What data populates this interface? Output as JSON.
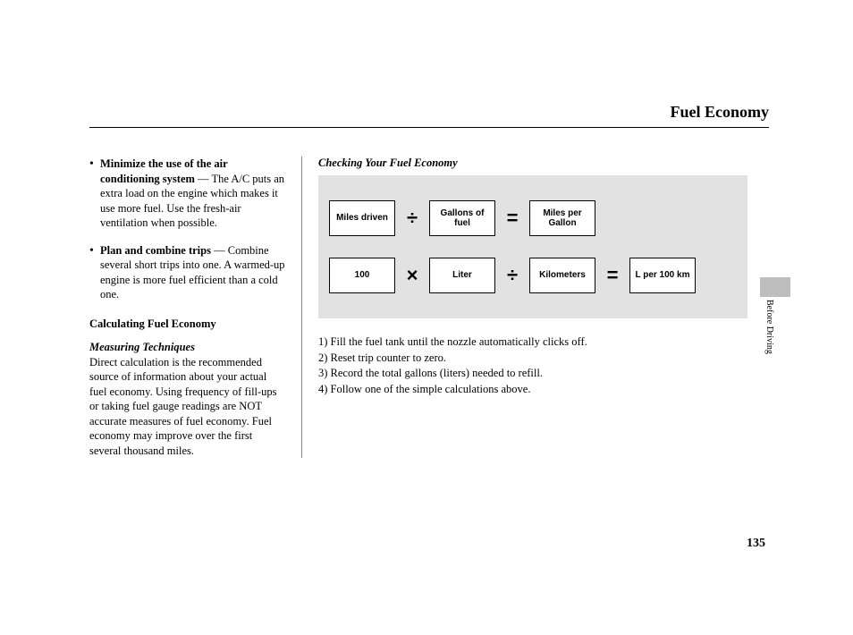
{
  "header": {
    "title": "Fuel Economy"
  },
  "left": {
    "bullet1_bold": "Minimize the use of the air conditioning system",
    "bullet1_rest": " — The A/C puts an extra load on the engine which makes it use more fuel. Use the fresh-air ventilation when possible.",
    "bullet2_bold": "Plan and combine trips",
    "bullet2_rest": " — Combine several short trips into one. A warmed-up engine is more fuel efficient than a cold one.",
    "calc_heading": "Calculating Fuel Economy",
    "measuring_heading": "Measuring Techniques",
    "measuring_text": "Direct calculation is the recommended source of information about your actual fuel economy. Using frequency of fill-ups or taking fuel gauge readings are NOT accurate measures of fuel economy. Fuel economy may improve over the first several thousand miles."
  },
  "right": {
    "section_label": "Checking Your Fuel Economy",
    "formula1": {
      "box1": "Miles driven",
      "op1": "÷",
      "box2": "Gallons of fuel",
      "op2": "=",
      "box3": "Miles per Gallon"
    },
    "formula2": {
      "box1": "100",
      "op1": "×",
      "box2": "Liter",
      "op2": "÷",
      "box3": "Kilometers",
      "op3": "=",
      "box4": "L per 100 km"
    },
    "steps": {
      "s1": "1) Fill the fuel tank until the nozzle automatically clicks off.",
      "s2": "2) Reset trip counter to zero.",
      "s3": "3) Record the total gallons (liters) needed to refill.",
      "s4": "4) Follow one of the simple calculations above."
    }
  },
  "sidebar": {
    "label": "Before Driving"
  },
  "page_number": "135",
  "styling": {
    "panel_bg": "#e2e2e2",
    "side_tab_bg": "#bdbdbd",
    "body_font": "Georgia",
    "box_font": "Arial"
  }
}
